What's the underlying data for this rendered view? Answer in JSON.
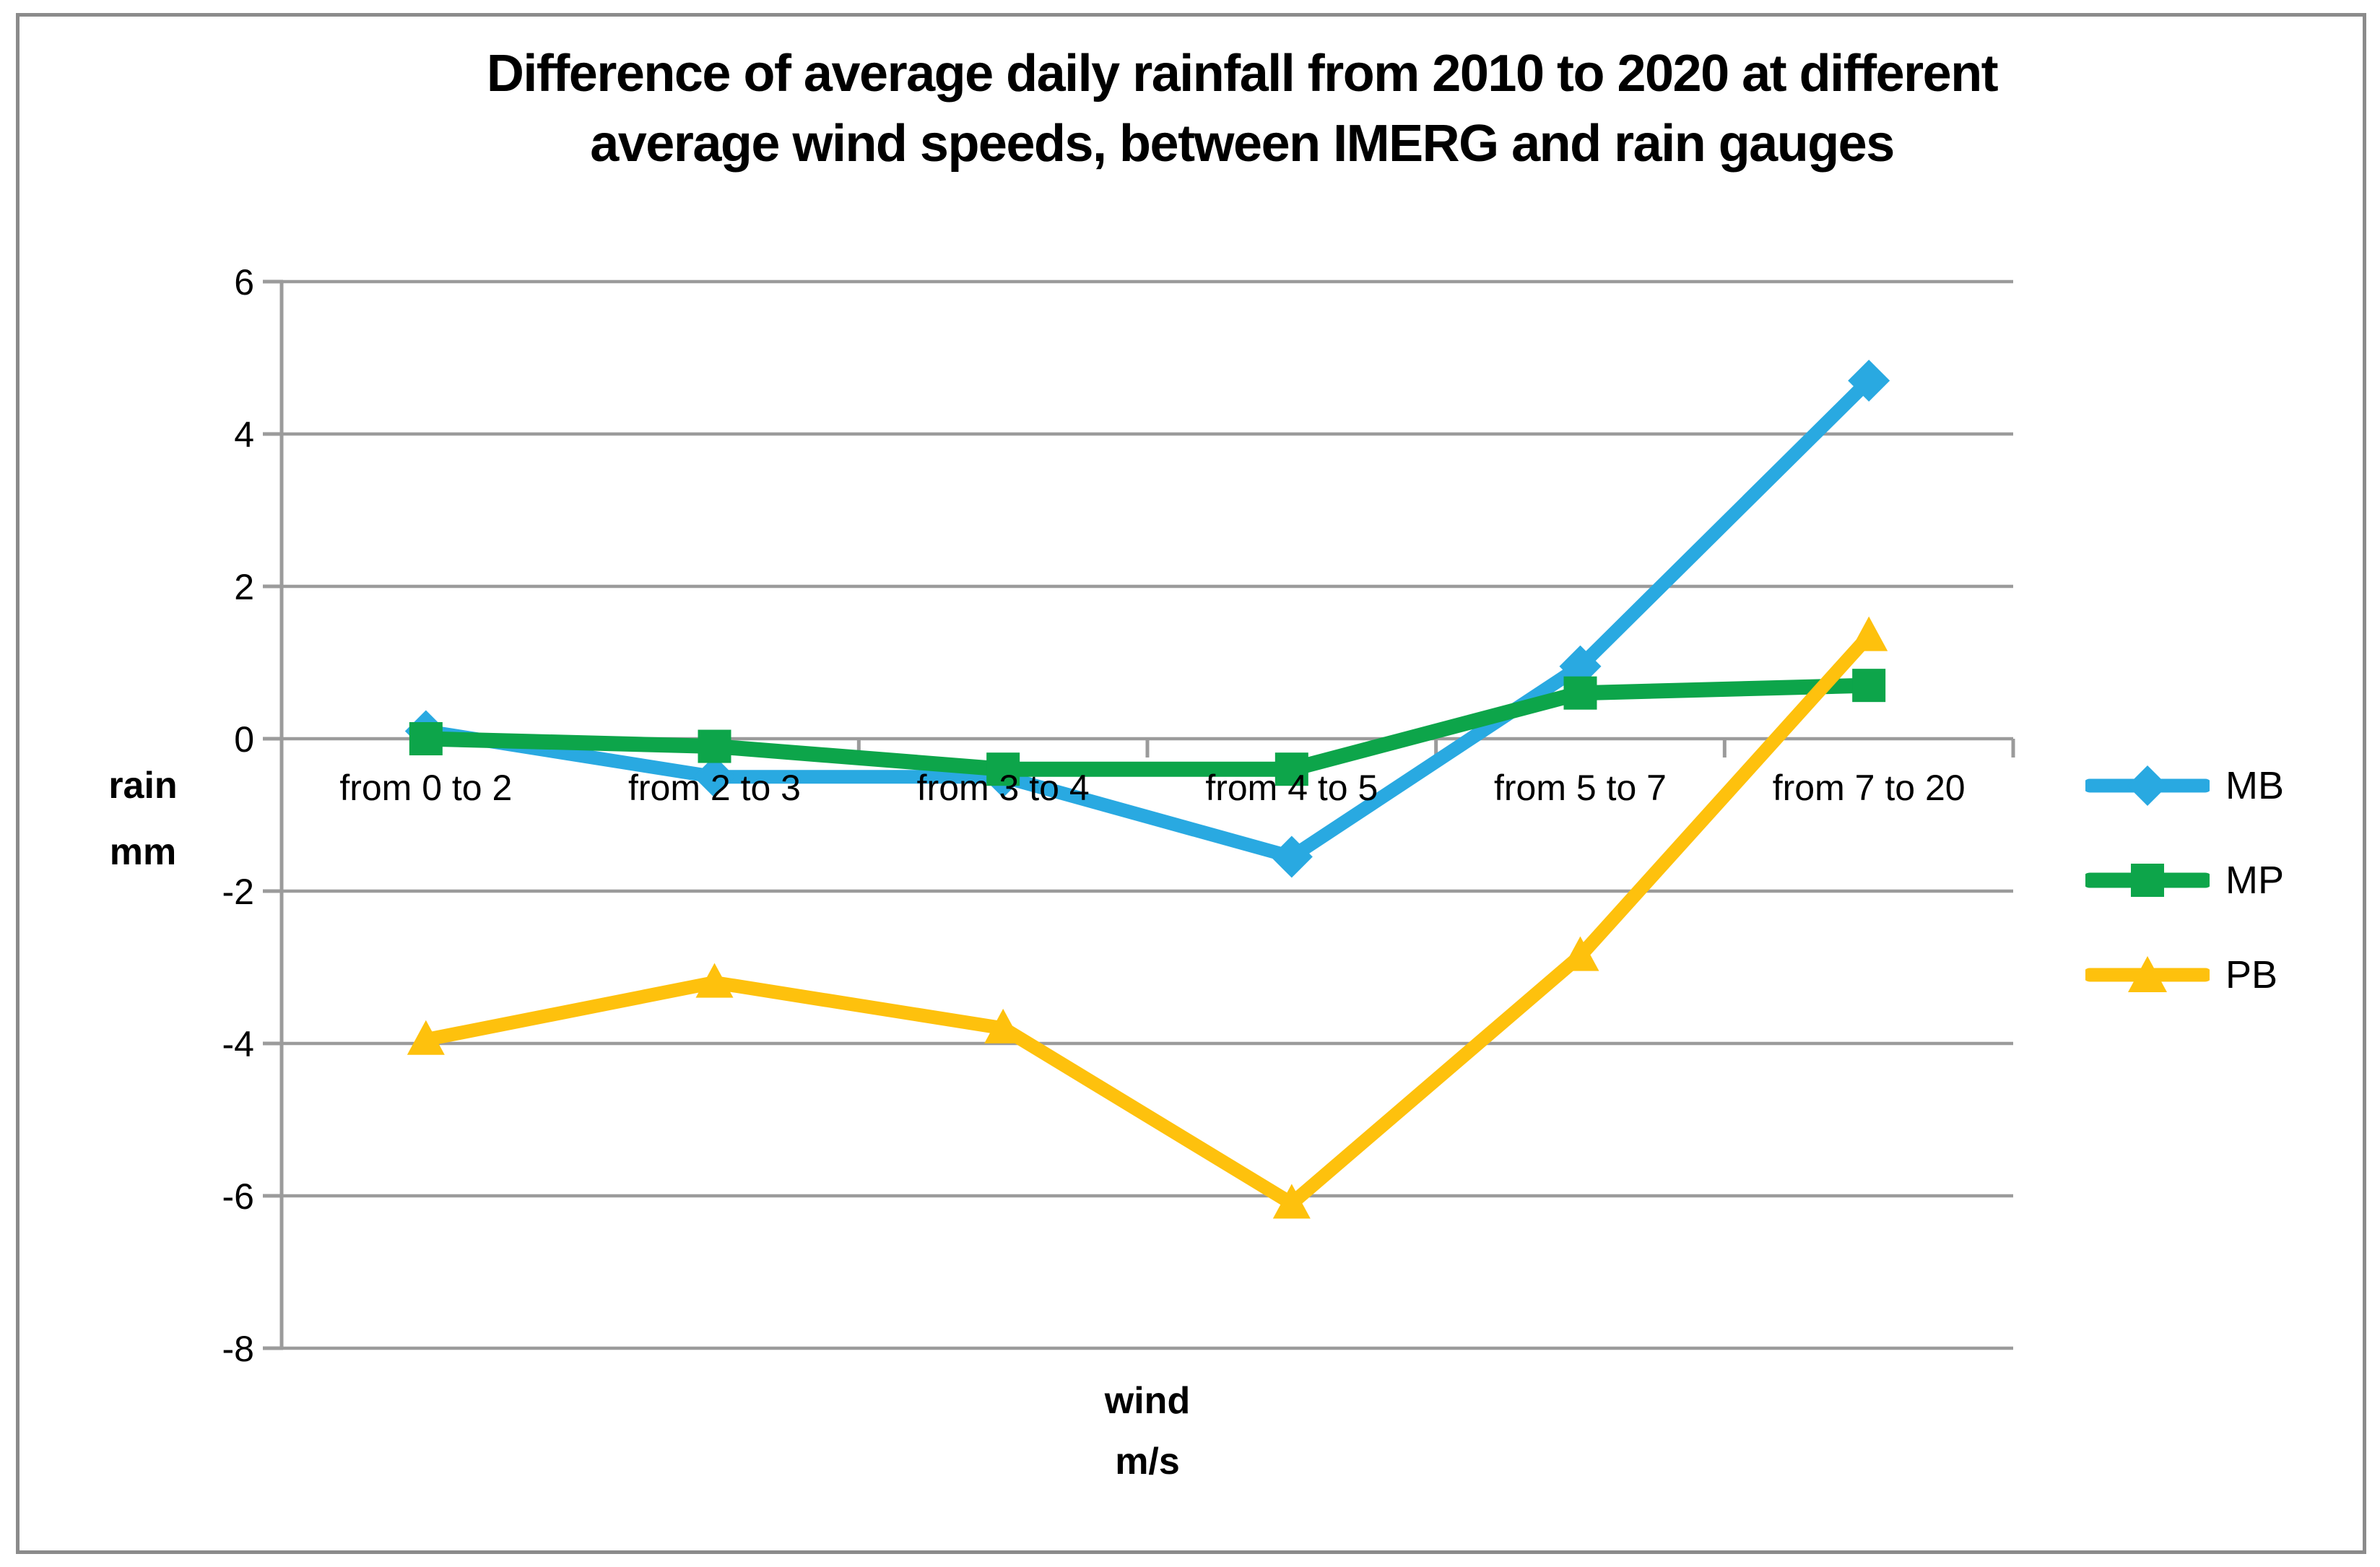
{
  "page": {
    "background": "#FFFFFF",
    "frame_color": "#8B8B8B"
  },
  "chart_data": {
    "type": "line",
    "title_line1": "Difference of average daily rainfall from 2010 to 2020 at different",
    "title_line2": "average wind speeds, between IMERG and rain gauges",
    "categories": [
      "from 0 to 2",
      "from 2 to 3",
      "from 3 to 4",
      "from 4 to 5",
      "from 5 to 7",
      "from 7 to 20"
    ],
    "series": [
      {
        "name": "MB",
        "marker": "diamond",
        "color": "#29A9E1",
        "values": [
          0.1,
          -0.5,
          -0.5,
          -1.55,
          0.95,
          4.7
        ]
      },
      {
        "name": "MP",
        "marker": "square",
        "color": "#0DA54A",
        "values": [
          0.0,
          -0.1,
          -0.4,
          -0.4,
          0.6,
          0.7
        ]
      },
      {
        "name": "PB",
        "marker": "triangle",
        "color": "#FEC10D",
        "values": [
          -3.95,
          -3.2,
          -3.8,
          -6.1,
          -2.85,
          1.35
        ]
      }
    ],
    "y_axis": {
      "title_line1": "rain",
      "title_line2": "mm",
      "ticks": [
        6,
        4,
        2,
        0,
        -2,
        -4,
        -6,
        -8
      ],
      "min": -8,
      "max": 6
    },
    "x_axis": {
      "title_line1": "wind",
      "title_line2": "m/s"
    },
    "grid": true,
    "legend_position": "right",
    "gridline_color": "#9B9B9B",
    "axis_color": "#9B9B9B",
    "text_color": "#000000"
  }
}
